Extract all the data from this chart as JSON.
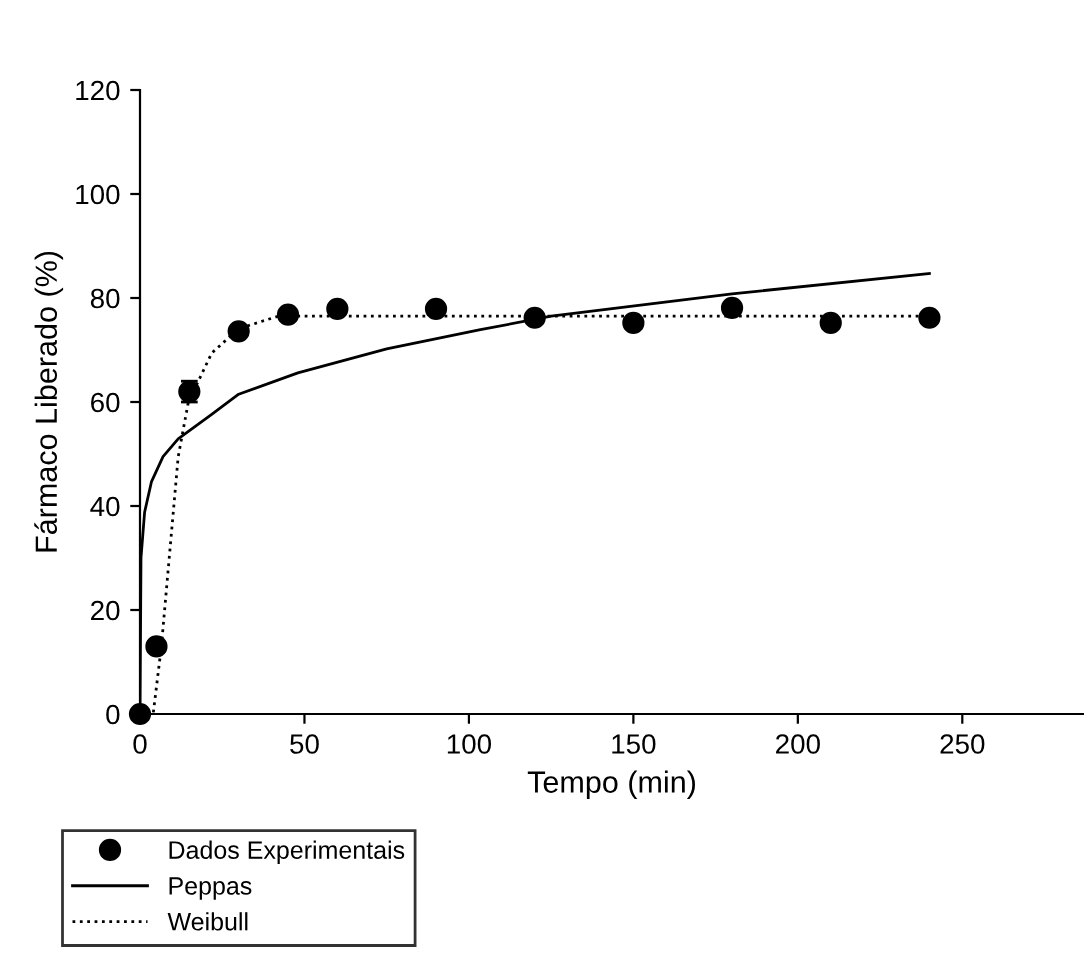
{
  "chart_data": {
    "type": "scatter",
    "xlabel": "Tempo (min)",
    "ylabel": "Fármaco Liberado (%)",
    "xlim": [
      0,
      287
    ],
    "xticks": [
      0,
      50,
      100,
      150,
      200,
      250
    ],
    "ylim": [
      0,
      120
    ],
    "yticks": [
      0,
      20,
      40,
      60,
      80,
      100,
      120
    ],
    "grid": false,
    "legend": "bottom left",
    "series": [
      {
        "name": "Dados Experimentais",
        "color": "#000000",
        "marker": "circle",
        "x": [
          0,
          5,
          15,
          30,
          45,
          60,
          90,
          120,
          150,
          180,
          210,
          240
        ],
        "values": [
          0,
          13,
          62,
          73.6,
          76.8,
          77.9,
          77.9,
          76.2,
          75.2,
          78.1,
          75.2,
          76.2
        ],
        "errors": [
          null,
          1,
          2,
          1,
          1,
          1,
          1,
          null,
          null,
          null,
          null,
          null
        ]
      },
      {
        "name": "Peppas",
        "type": "line",
        "color": "#000000",
        "line_style": "solid",
        "marker": "none",
        "x": [
          0,
          0.3,
          0.8,
          1.4,
          3.5,
          7,
          11.6,
          21.8,
          30,
          48,
          75,
          103.5,
          125,
          180,
          240
        ],
        "values": [
          0,
          30,
          34,
          38.8,
          44.7,
          49.5,
          52.9,
          57.6,
          61.5,
          65.6,
          70.2,
          73.9,
          76.5,
          80.8,
          84.7
        ]
      },
      {
        "name": "Weibull",
        "type": "line",
        "color": "#000000",
        "line_style": "dotted",
        "marker": "none",
        "x": [
          0,
          4,
          6.5,
          11.6,
          14.7,
          21.8,
          30,
          42,
          60,
          240
        ],
        "values": [
          0,
          0,
          13,
          49.4,
          60,
          69.4,
          74.1,
          76.5,
          76.5,
          76.5
        ]
      }
    ]
  }
}
